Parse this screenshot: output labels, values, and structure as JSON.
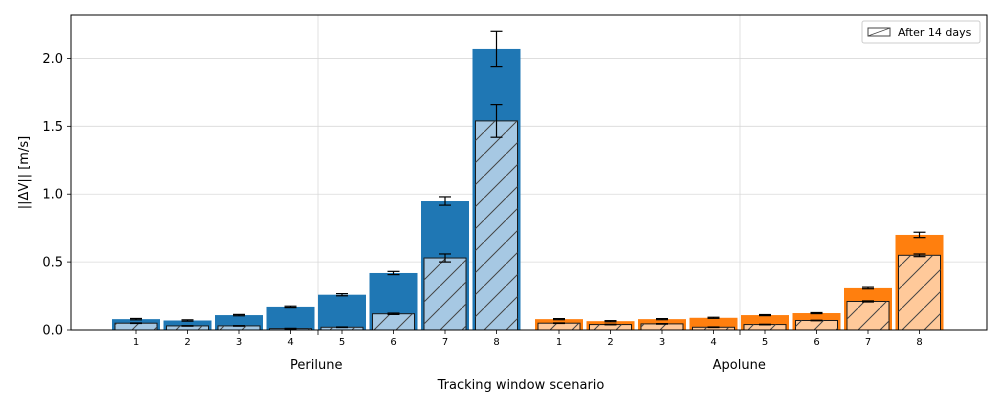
{
  "chart_data": {
    "type": "bar",
    "xlabel": "Tracking window scenario",
    "ylabel": "||ΔV|| [m/s]",
    "ylim": [
      0,
      2.32
    ],
    "yticks": [
      "0.0",
      "0.5",
      "1.0",
      "1.5",
      "2.0"
    ],
    "grid": true,
    "legend": {
      "placement": "top-right",
      "entries": [
        "After 14 days"
      ]
    },
    "categories": [
      "1",
      "2",
      "3",
      "4",
      "5",
      "6",
      "7",
      "8"
    ],
    "groups": [
      {
        "name": "Perilune",
        "color": "#1f77b4",
        "hatch_color": "#a6c8e3",
        "values": [
          0.08,
          0.07,
          0.11,
          0.17,
          0.26,
          0.42,
          0.95,
          2.07
        ],
        "errors": [
          0.005,
          0.005,
          0.005,
          0.005,
          0.008,
          0.012,
          0.03,
          0.13
        ],
        "after_14_days_values": [
          0.05,
          0.03,
          0.03,
          0.01,
          0.02,
          0.12,
          0.53,
          1.54
        ],
        "after_14_days_errors": [
          0.002,
          0.002,
          0.002,
          0.002,
          0.002,
          0.005,
          0.03,
          0.12
        ]
      },
      {
        "name": "Apolune",
        "color": "#ff7f0e",
        "hatch_color": "#ffc99a",
        "values": [
          0.08,
          0.065,
          0.08,
          0.09,
          0.11,
          0.125,
          0.31,
          0.7
        ],
        "errors": [
          0.004,
          0.004,
          0.004,
          0.004,
          0.004,
          0.004,
          0.006,
          0.02
        ],
        "after_14_days_values": [
          0.05,
          0.04,
          0.045,
          0.02,
          0.04,
          0.07,
          0.21,
          0.55
        ],
        "after_14_days_errors": [
          0.002,
          0.002,
          0.002,
          0.002,
          0.002,
          0.002,
          0.004,
          0.01
        ]
      }
    ]
  }
}
